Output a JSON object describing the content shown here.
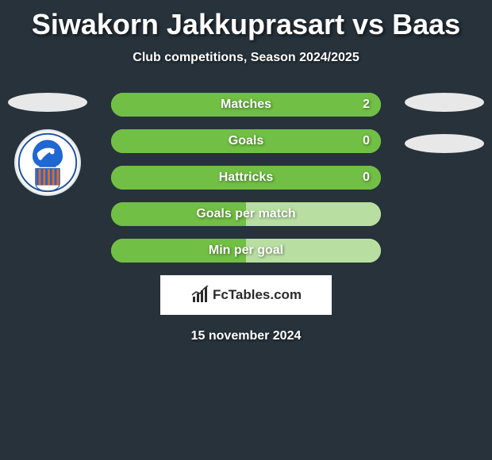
{
  "header": {
    "title": "Siwakorn Jakkuprasart vs Baas",
    "subtitle": "Club competitions, Season 2024/2025"
  },
  "colors": {
    "background": "#27323b",
    "bar_active": "#71bf44",
    "bar_inactive": "#b8dfa1",
    "oval": "#e8e8e8"
  },
  "stats": [
    {
      "label": "Matches",
      "value": "2",
      "left_pct": 100,
      "right_pct": 0,
      "left_color": "#71bf44",
      "right_color": "#b8dfa1",
      "show_value": true
    },
    {
      "label": "Goals",
      "value": "0",
      "left_pct": 100,
      "right_pct": 0,
      "left_color": "#71bf44",
      "right_color": "#b8dfa1",
      "show_value": true
    },
    {
      "label": "Hattricks",
      "value": "0",
      "left_pct": 100,
      "right_pct": 0,
      "left_color": "#71bf44",
      "right_color": "#b8dfa1",
      "show_value": true
    },
    {
      "label": "Goals per match",
      "value": "",
      "left_pct": 50,
      "right_pct": 50,
      "left_color": "#71bf44",
      "right_color": "#b8dfa1",
      "show_value": false
    },
    {
      "label": "Min per goal",
      "value": "",
      "left_pct": 50,
      "right_pct": 50,
      "left_color": "#71bf44",
      "right_color": "#b8dfa1",
      "show_value": false
    }
  ],
  "footer": {
    "brand": "FcTables.com",
    "date": "15 november 2024"
  },
  "left_badge": {
    "has_club": true
  },
  "right_badge": {
    "has_club": false
  }
}
